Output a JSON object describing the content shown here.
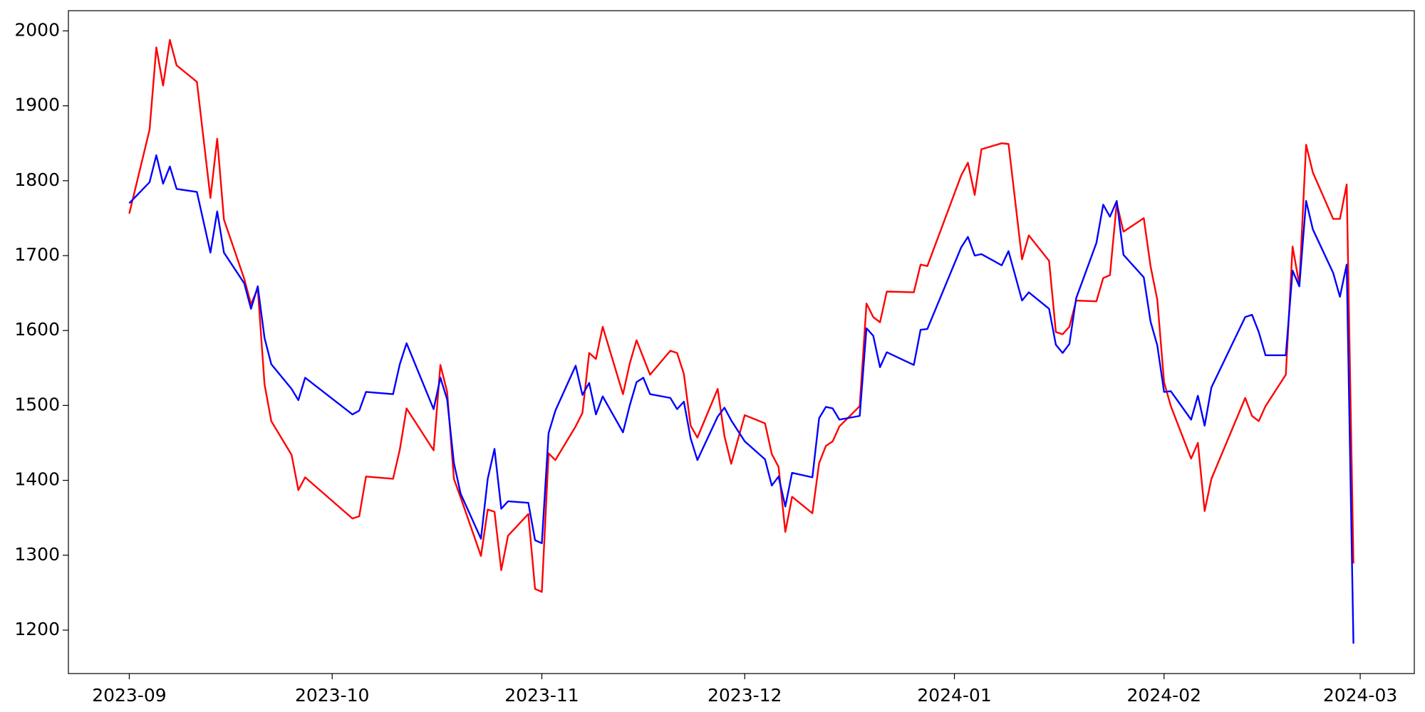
{
  "chart_data": {
    "type": "line",
    "x": [
      0,
      3,
      4,
      5,
      6,
      7,
      10,
      12,
      13,
      14,
      17,
      18,
      19,
      20,
      21,
      24,
      25,
      26,
      33,
      34,
      35,
      39,
      40,
      41,
      45,
      46,
      47,
      48,
      49,
      52,
      53,
      54,
      55,
      56,
      59,
      60,
      61,
      62,
      63,
      66,
      67,
      68,
      69,
      70,
      73,
      74,
      75,
      76,
      77,
      80,
      81,
      82,
      83,
      84,
      87,
      88,
      89,
      91,
      94,
      95,
      96,
      97,
      98,
      101,
      102,
      103,
      104,
      105,
      108,
      109,
      110,
      111,
      112,
      116,
      117,
      118,
      123,
      124,
      125,
      126,
      129,
      130,
      132,
      133,
      136,
      137,
      138,
      139,
      140,
      143,
      144,
      145,
      146,
      147,
      150,
      151,
      152,
      153,
      154,
      157,
      158,
      159,
      160,
      165,
      166,
      167,
      168,
      171,
      172,
      173,
      174,
      175,
      178,
      179,
      180,
      181
    ],
    "series": [
      {
        "color": "#ff0000",
        "values": [
          1756,
          1868,
          1978,
          1927,
          1988,
          1954,
          1932,
          1777,
          1856,
          1748,
          1669,
          1635,
          1656,
          1528,
          1479,
          1434,
          1387,
          1404,
          1349,
          1352,
          1405,
          1402,
          1441,
          1496,
          1440,
          1554,
          1518,
          1402,
          1377,
          1299,
          1361,
          1358,
          1280,
          1326,
          1355,
          1255,
          1251,
          1436,
          1427,
          1472,
          1490,
          1570,
          1562,
          1605,
          1515,
          1556,
          1587,
          1564,
          1541,
          1573,
          1570,
          1542,
          1473,
          1457,
          1522,
          1459,
          1422,
          1487,
          1476,
          1435,
          1418,
          1331,
          1378,
          1356,
          1423,
          1446,
          1452,
          1472,
          1499,
          1636,
          1618,
          1611,
          1652,
          1651,
          1688,
          1686,
          1807,
          1824,
          1781,
          1842,
          1850,
          1849,
          1695,
          1727,
          1693,
          1598,
          1595,
          1605,
          1640,
          1639,
          1670,
          1674,
          1770,
          1732,
          1750,
          1686,
          1641,
          1531,
          1499,
          1429,
          1450,
          1359,
          1402,
          1510,
          1486,
          1479,
          1499,
          1541,
          1712,
          1661,
          1848,
          1811,
          1749,
          1749,
          1795,
          1289
        ]
      },
      {
        "color": "#0000ff",
        "values": [
          1770,
          1798,
          1834,
          1796,
          1819,
          1789,
          1785,
          1704,
          1759,
          1704,
          1663,
          1629,
          1659,
          1590,
          1555,
          1522,
          1507,
          1537,
          1488,
          1493,
          1518,
          1515,
          1555,
          1583,
          1495,
          1537,
          1508,
          1423,
          1382,
          1322,
          1402,
          1442,
          1362,
          1372,
          1370,
          1320,
          1316,
          1463,
          1493,
          1553,
          1514,
          1530,
          1488,
          1512,
          1464,
          1500,
          1531,
          1537,
          1515,
          1510,
          1495,
          1505,
          1456,
          1427,
          1485,
          1497,
          1480,
          1452,
          1428,
          1393,
          1405,
          1365,
          1410,
          1404,
          1483,
          1498,
          1496,
          1481,
          1486,
          1603,
          1593,
          1551,
          1571,
          1554,
          1601,
          1602,
          1711,
          1725,
          1700,
          1702,
          1687,
          1706,
          1640,
          1651,
          1629,
          1581,
          1570,
          1582,
          1643,
          1717,
          1768,
          1752,
          1773,
          1701,
          1671,
          1612,
          1580,
          1518,
          1519,
          1481,
          1513,
          1473,
          1524,
          1618,
          1621,
          1598,
          1567,
          1567,
          1680,
          1659,
          1773,
          1735,
          1677,
          1645,
          1688,
          1182
        ]
      }
    ],
    "xlim": [
      -9,
      190
    ],
    "xticks": [
      {
        "value": 0,
        "label": "2023-09"
      },
      {
        "value": 30,
        "label": "2023-10"
      },
      {
        "value": 61,
        "label": "2023-11"
      },
      {
        "value": 91,
        "label": "2023-12"
      },
      {
        "value": 122,
        "label": "2024-01"
      },
      {
        "value": 153,
        "label": "2024-02"
      },
      {
        "value": 182,
        "label": "2024-03"
      }
    ],
    "ylim": [
      1142,
      2027
    ],
    "yticks": [
      1200,
      1300,
      1400,
      1500,
      1600,
      1700,
      1800,
      1900,
      2000
    ],
    "grid": false
  }
}
